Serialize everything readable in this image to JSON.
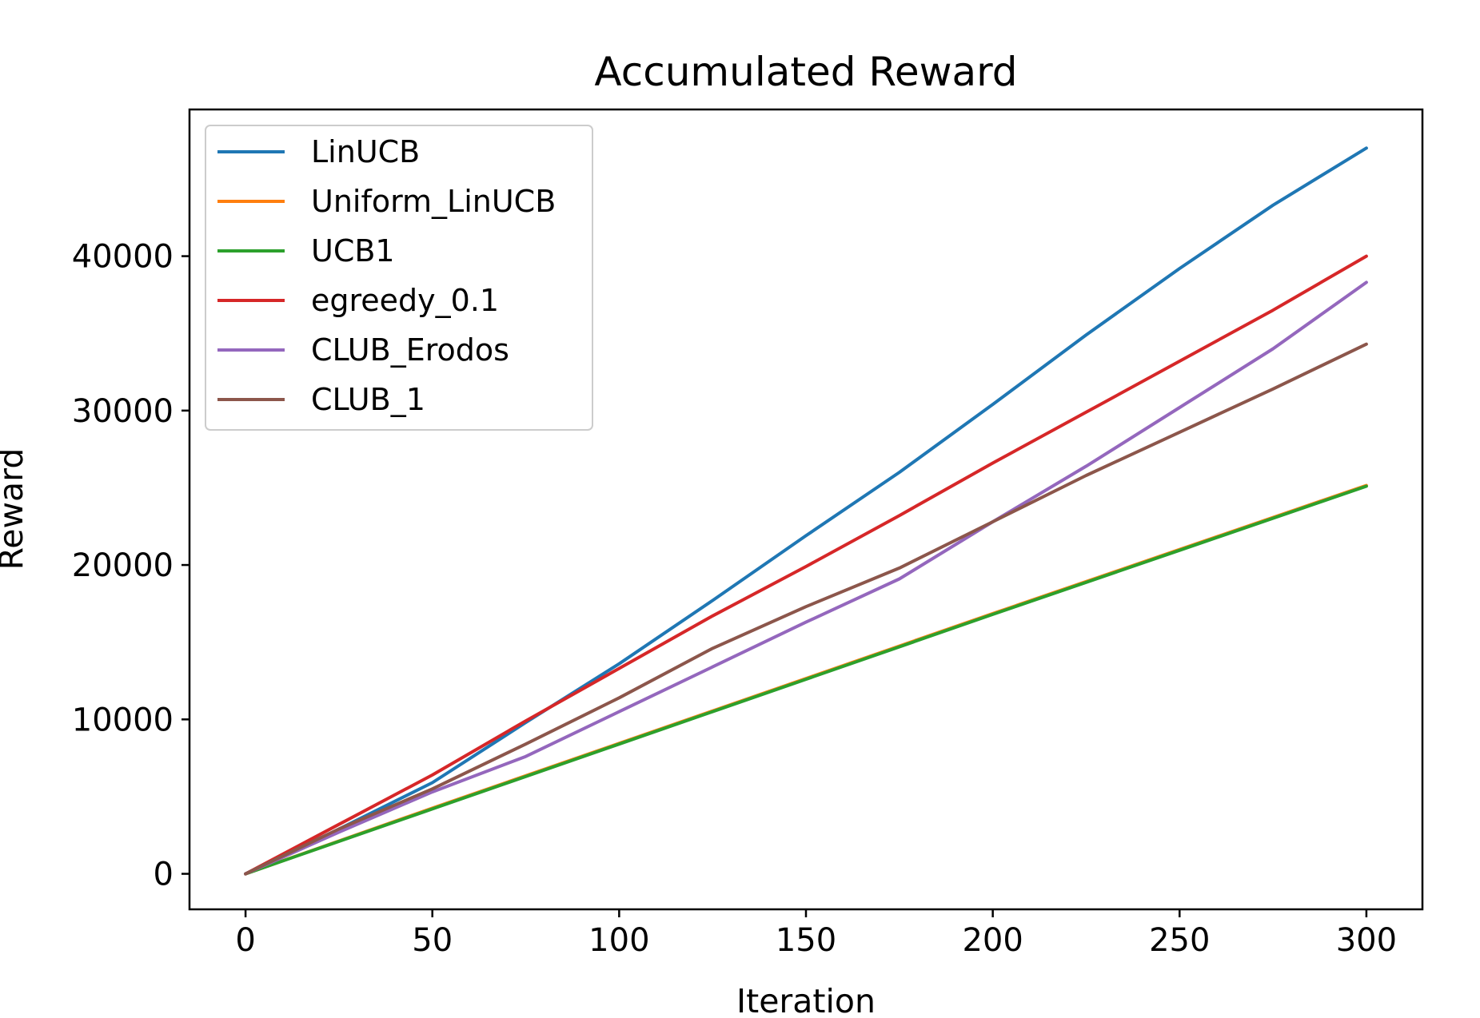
{
  "chart_data": {
    "type": "line",
    "title": "Accumulated Reward",
    "xlabel": "Iteration",
    "ylabel": "Reward",
    "xlim": [
      -15,
      315
    ],
    "ylim": [
      -2300,
      49500
    ],
    "xticks": [
      0,
      50,
      100,
      150,
      200,
      250,
      300
    ],
    "yticks": [
      0,
      10000,
      20000,
      30000,
      40000
    ],
    "grid": false,
    "legend_position": "upper-left",
    "series": [
      {
        "name": "LinUCB",
        "color": "#1f77b4",
        "x": [
          0,
          25,
          50,
          75,
          100,
          125,
          150,
          175,
          200,
          225,
          250,
          275,
          300
        ],
        "y": [
          0,
          2900,
          5900,
          9800,
          13600,
          17700,
          21900,
          26000,
          30400,
          34900,
          39200,
          43300,
          47000
        ]
      },
      {
        "name": "Uniform_LinUCB",
        "color": "#ff7f0e",
        "x": [
          0,
          50,
          100,
          150,
          200,
          250,
          300
        ],
        "y": [
          0,
          4250,
          8450,
          12650,
          16850,
          21000,
          25150
        ]
      },
      {
        "name": "UCB1",
        "color": "#2ca02c",
        "x": [
          0,
          50,
          100,
          150,
          200,
          250,
          300
        ],
        "y": [
          0,
          4200,
          8400,
          12600,
          16800,
          20950,
          25100
        ]
      },
      {
        "name": "egreedy_0.1",
        "color": "#d62728",
        "x": [
          0,
          25,
          50,
          75,
          100,
          125,
          150,
          175,
          200,
          225,
          250,
          275,
          300
        ],
        "y": [
          0,
          3200,
          6400,
          9900,
          13300,
          16700,
          19900,
          23200,
          26600,
          29900,
          33200,
          36500,
          40000
        ]
      },
      {
        "name": "CLUB_Erodos",
        "color": "#9467bd",
        "x": [
          0,
          25,
          50,
          75,
          100,
          125,
          150,
          175,
          200,
          225,
          250,
          275,
          300
        ],
        "y": [
          0,
          2700,
          5300,
          7600,
          10500,
          13400,
          16300,
          19100,
          22800,
          26400,
          30200,
          34000,
          38300
        ]
      },
      {
        "name": "CLUB_1",
        "color": "#8c564b",
        "x": [
          0,
          25,
          50,
          75,
          100,
          125,
          150,
          175,
          200,
          225,
          250,
          275,
          300
        ],
        "y": [
          0,
          2900,
          5500,
          8400,
          11400,
          14600,
          17300,
          19800,
          22800,
          25800,
          28600,
          31400,
          34300
        ]
      }
    ]
  }
}
